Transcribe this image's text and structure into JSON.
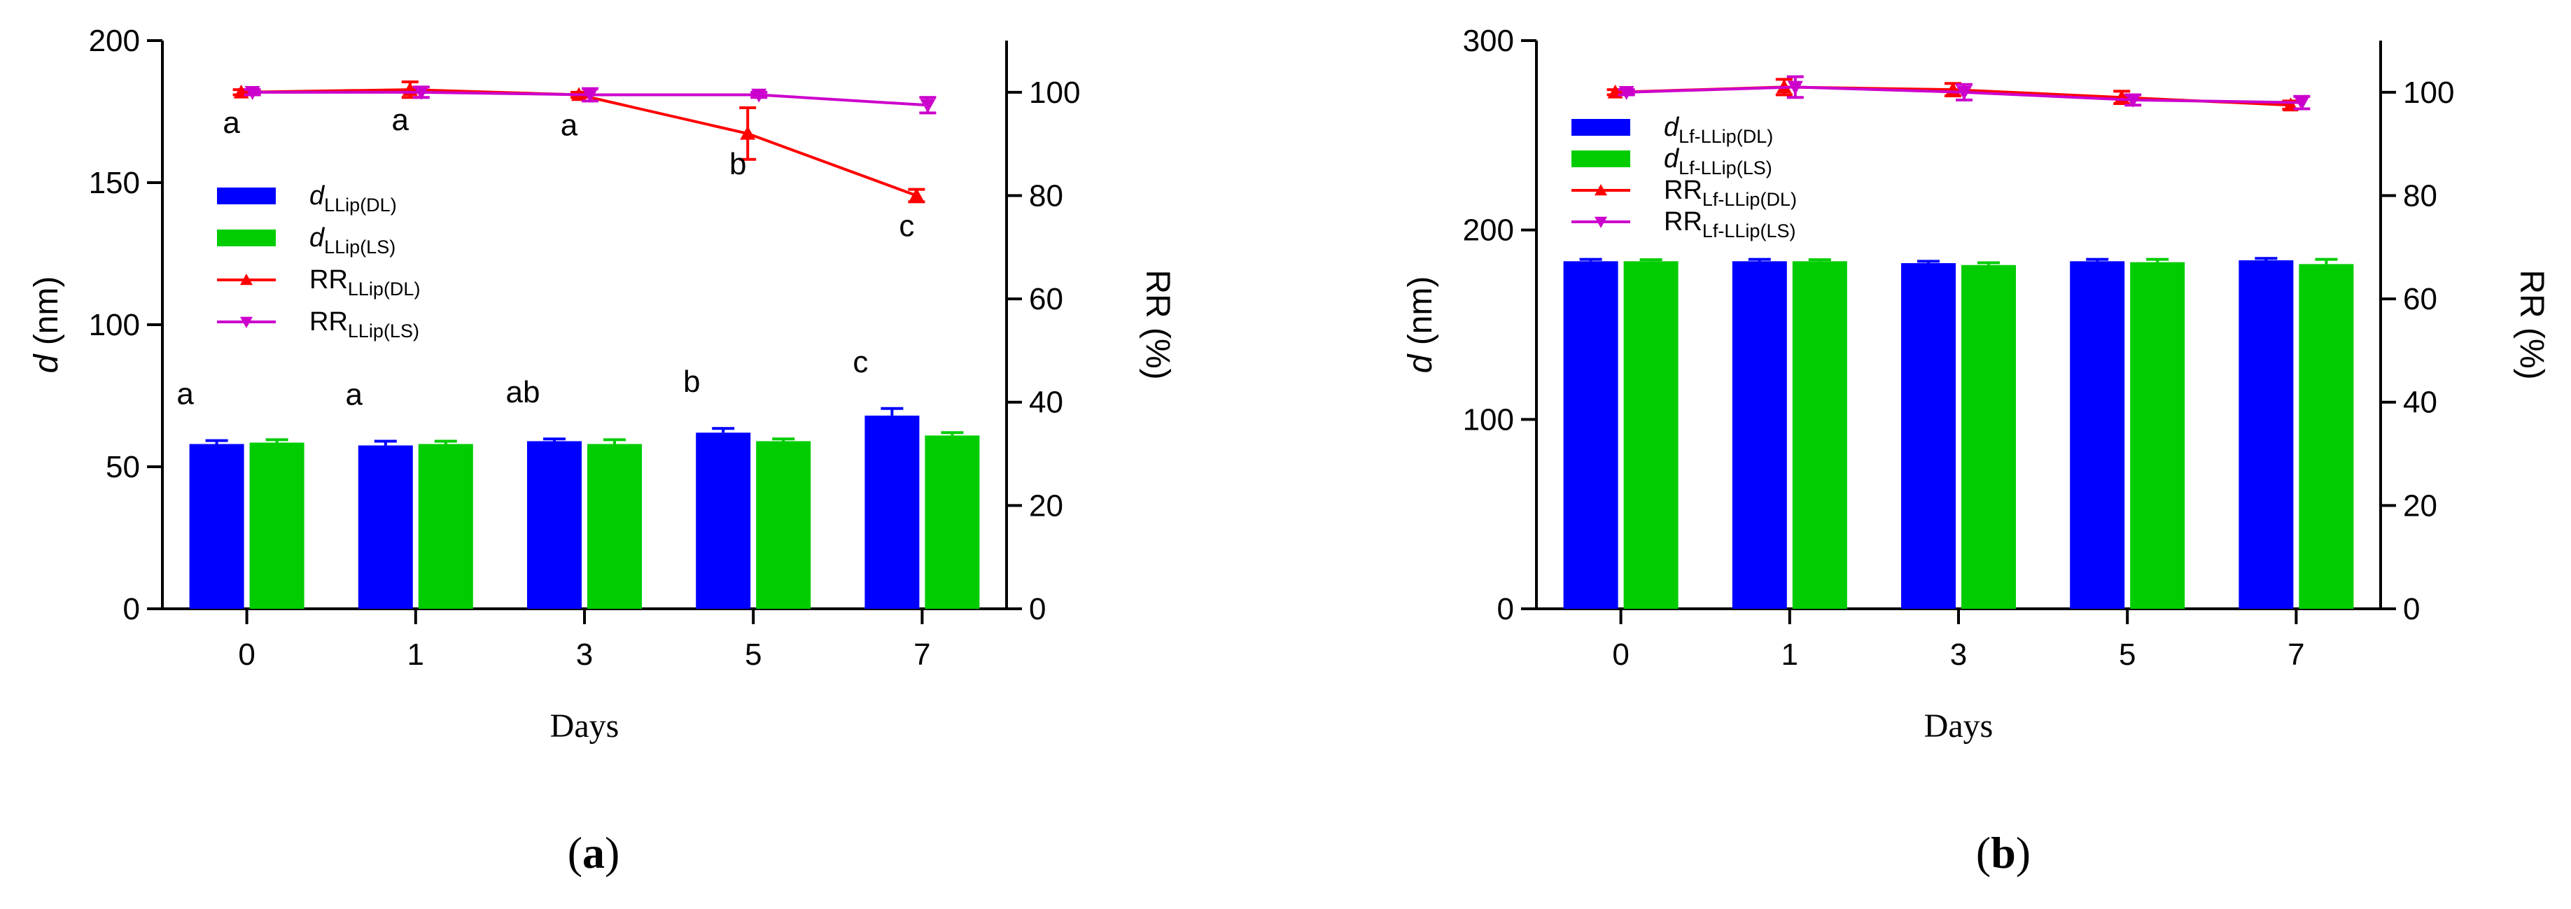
{
  "chart_data": [
    {
      "type": "bar+line",
      "panel": "a",
      "panel_label": {
        "open": "(",
        "letter": "a",
        "close": ")"
      },
      "categories": [
        "0",
        "1",
        "3",
        "5",
        "7"
      ],
      "xlabel": "Days",
      "ylabel_left": {
        "italic": "d",
        "rest": " (nm)"
      },
      "ylabel_right": "RR (%)",
      "ylim_left": [
        0,
        200
      ],
      "yticks_left": [
        0,
        50,
        100,
        150,
        200
      ],
      "ylim_right": [
        0,
        110
      ],
      "yticks_right": [
        0,
        20,
        40,
        60,
        80,
        100
      ],
      "bars": [
        {
          "name": "d_LLip(DL)",
          "legend_main": "d",
          "legend_sub": "LLip(DL)",
          "color": "#0000FF",
          "values": [
            58,
            57.5,
            59,
            62,
            68
          ],
          "errors": [
            1.2,
            1.5,
            0.8,
            1.5,
            2.5
          ],
          "letters": [
            "a",
            "a",
            "ab",
            "b",
            "c"
          ]
        },
        {
          "name": "d_LLip(LS)",
          "legend_main": "d",
          "legend_sub": "LLip(LS)",
          "color": "#00CC00",
          "values": [
            58.5,
            58,
            58,
            59,
            61
          ],
          "errors": [
            1.0,
            1.0,
            1.5,
            0.8,
            1.0
          ]
        }
      ],
      "lines": [
        {
          "name": "RR_LLip(DL)",
          "legend_main": "RR",
          "legend_sub": "LLip(DL)",
          "color": "#FF0000",
          "marker": "triangle-up",
          "values": [
            100,
            100.5,
            99.5,
            92,
            80
          ],
          "errors": [
            0.5,
            1.5,
            0.5,
            5,
            1.2
          ],
          "letters": [
            "a",
            "a",
            "a",
            "b",
            "c"
          ]
        },
        {
          "name": "RR_LLip(LS)",
          "legend_main": "RR",
          "legend_sub": "LLip(LS)",
          "color": "#CC00CC",
          "marker": "triangle-down",
          "values": [
            100,
            100,
            99.5,
            99.5,
            97.5
          ],
          "errors": [
            0.5,
            1.0,
            1.2,
            0.5,
            1.5
          ]
        }
      ]
    },
    {
      "type": "bar+line",
      "panel": "b",
      "panel_label": {
        "open": "(",
        "letter": "b",
        "close": ")"
      },
      "categories": [
        "0",
        "1",
        "3",
        "5",
        "7"
      ],
      "xlabel": "Days",
      "ylabel_left": {
        "italic": "d",
        "rest": " (nm)"
      },
      "ylabel_right": "RR (%)",
      "ylim_left": [
        0,
        300
      ],
      "yticks_left": [
        0,
        100,
        200,
        300
      ],
      "ylim_right": [
        0,
        110
      ],
      "yticks_right": [
        0,
        20,
        40,
        60,
        80,
        100
      ],
      "bars": [
        {
          "name": "d_Lf-LLip(DL)",
          "legend_main": "d",
          "legend_sub": "Lf-LLip(DL)",
          "color": "#0000FF",
          "values": [
            183.5,
            183.5,
            182.5,
            183.5,
            184
          ],
          "errors": [
            1,
            1,
            1,
            1,
            1
          ]
        },
        {
          "name": "d_Lf-LLip(LS)",
          "legend_main": "d",
          "legend_sub": "Lf-LLip(LS)",
          "color": "#00CC00",
          "values": [
            183.5,
            183.5,
            181.5,
            183,
            182
          ],
          "errors": [
            0.8,
            0.8,
            1.2,
            1.5,
            2.5
          ]
        }
      ],
      "lines": [
        {
          "name": "RR_Lf-LLip(DL)",
          "legend_main": "RR",
          "legend_sub": "Lf-LLip(DL)",
          "color": "#FF0000",
          "marker": "triangle-up",
          "values": [
            100,
            101,
            100.5,
            99,
            97.5
          ],
          "errors": [
            0.5,
            1.5,
            1.2,
            1.2,
            0.8
          ]
        },
        {
          "name": "RR_Lf-LLip(LS)",
          "legend_main": "RR",
          "legend_sub": "Lf-LLip(LS)",
          "color": "#CC00CC",
          "marker": "triangle-down",
          "values": [
            100,
            101,
            100,
            98.5,
            98
          ],
          "errors": [
            0.5,
            2,
            1.5,
            1,
            1.2
          ]
        }
      ]
    }
  ]
}
